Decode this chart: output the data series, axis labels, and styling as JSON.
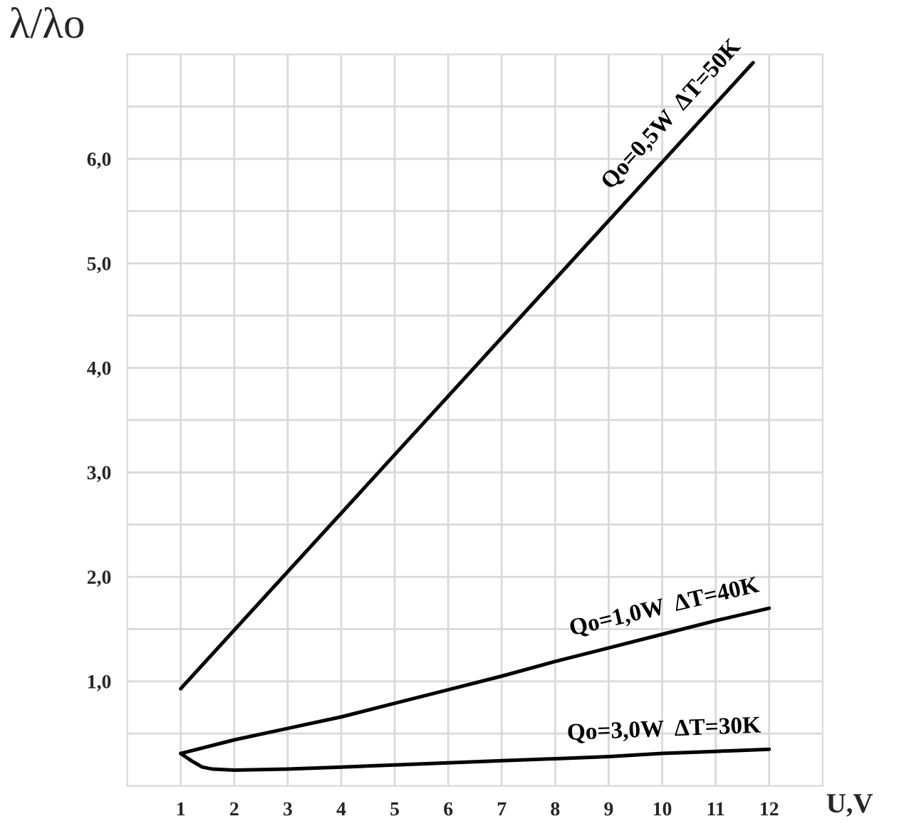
{
  "chart_data": {
    "type": "line",
    "xlabel": "U,V",
    "ylabel": "λ/λo",
    "xlim": [
      0,
      13
    ],
    "ylim": [
      0,
      7
    ],
    "xticks": [
      1,
      2,
      3,
      4,
      5,
      6,
      7,
      8,
      9,
      10,
      11,
      12
    ],
    "yticks": [
      {
        "value": 0.5,
        "label": null
      },
      {
        "value": 1.0,
        "label": "1,0"
      },
      {
        "value": 1.5,
        "label": null
      },
      {
        "value": 2.0,
        "label": "2,0"
      },
      {
        "value": 2.5,
        "label": null
      },
      {
        "value": 3.0,
        "label": "3,0"
      },
      {
        "value": 3.5,
        "label": null
      },
      {
        "value": 4.0,
        "label": "4,0"
      },
      {
        "value": 4.5,
        "label": null
      },
      {
        "value": 5.0,
        "label": "5,0"
      },
      {
        "value": 5.5,
        "label": null
      },
      {
        "value": 6.0,
        "label": "6,0"
      },
      {
        "value": 6.5,
        "label": null
      }
    ],
    "grid": true,
    "legend": false,
    "marker": "none",
    "line_style": "solid",
    "series": [
      {
        "name": "Qo=0,5W  ΔT=50K",
        "color": "#000000",
        "x": [
          1,
          11.7
        ],
        "values": [
          0.93,
          6.92
        ]
      },
      {
        "name": "Qo=1,0W  ΔT=40K",
        "color": "#000000",
        "x": [
          1,
          2,
          3,
          4,
          5,
          6,
          7,
          8,
          9,
          10,
          11,
          12
        ],
        "values": [
          0.31,
          0.44,
          0.55,
          0.66,
          0.79,
          0.92,
          1.05,
          1.19,
          1.32,
          1.45,
          1.58,
          1.7
        ]
      },
      {
        "name": "Qo=3,0W  ΔT=30K",
        "color": "#000000",
        "x": [
          1,
          1.2,
          1.4,
          1.6,
          2,
          3,
          4,
          5,
          6,
          7,
          8,
          9,
          10,
          11,
          12
        ],
        "values": [
          0.31,
          0.24,
          0.18,
          0.16,
          0.15,
          0.16,
          0.18,
          0.2,
          0.22,
          0.24,
          0.26,
          0.28,
          0.31,
          0.33,
          0.35
        ]
      }
    ]
  }
}
